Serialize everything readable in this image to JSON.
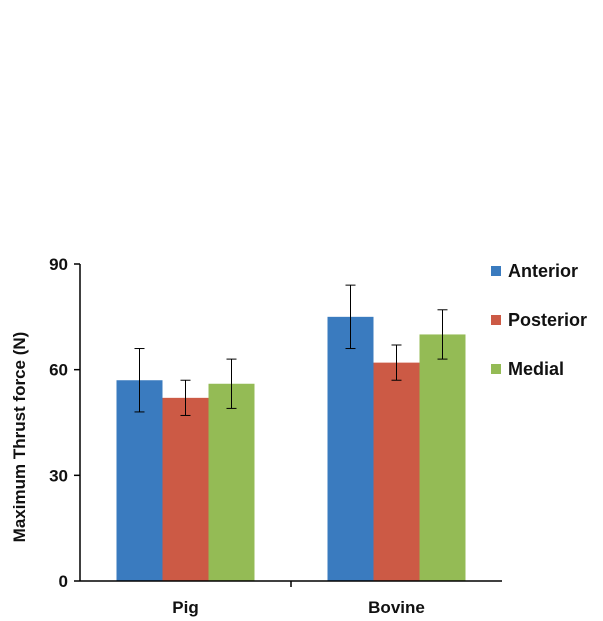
{
  "chart_data": {
    "type": "bar",
    "title": "",
    "xlabel": "",
    "ylabel": "Maximum Thrust force (N)",
    "ylim": [
      0,
      90
    ],
    "yticks": [
      0,
      30,
      60,
      90
    ],
    "grid": false,
    "legend_position": "right",
    "categories": [
      "Pig",
      "Bovine"
    ],
    "series": [
      {
        "name": "Anterior",
        "color": "#3a7bbf",
        "values": [
          57,
          75
        ],
        "errors": [
          9,
          9
        ]
      },
      {
        "name": "Posterior",
        "color": "#cc5a45",
        "values": [
          52,
          62
        ],
        "errors": [
          5,
          5
        ]
      },
      {
        "name": "Medial",
        "color": "#94bb55",
        "values": [
          56,
          70
        ],
        "errors": [
          7,
          7
        ]
      }
    ]
  }
}
